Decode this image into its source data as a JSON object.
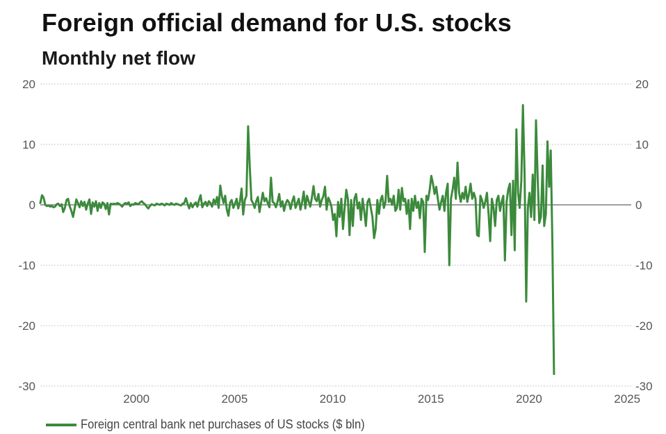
{
  "chart_data": {
    "type": "line",
    "title": "Foreign official demand for U.S. stocks",
    "subtitle": "Monthly net flow",
    "xlabel": "",
    "ylabel": "",
    "x_start": "1995-01",
    "x_frequency": "monthly",
    "xlim": [
      1995,
      2025.1
    ],
    "ylim": [
      -30,
      20
    ],
    "x_ticks": [
      {
        "value": 2000,
        "label": "2000"
      },
      {
        "value": 2005,
        "label": "2005"
      },
      {
        "value": 2010,
        "label": "2010"
      },
      {
        "value": 2015,
        "label": "2015"
      },
      {
        "value": 2020,
        "label": "2020"
      },
      {
        "value": 2025,
        "label": "2025"
      }
    ],
    "y_ticks": [
      {
        "value": 20,
        "label": "20"
      },
      {
        "value": 10,
        "label": "10"
      },
      {
        "value": 0,
        "label": "0"
      },
      {
        "value": -10,
        "label": "-10"
      },
      {
        "value": -20,
        "label": "-20"
      },
      {
        "value": -30,
        "label": "-30"
      }
    ],
    "grid": true,
    "dual_y_axis": true,
    "legend_position": "bottom-left",
    "series": [
      {
        "name": "Foreign central bank net purchases of US stocks ($ bln)",
        "color": "#3c8a3c",
        "values": [
          0.3,
          1.6,
          1.2,
          0.0,
          -0.2,
          -0.1,
          -0.3,
          -0.2,
          -0.4,
          -0.3,
          0.1,
          0.2,
          -0.2,
          0.1,
          -1.2,
          -0.5,
          0.8,
          1.0,
          -0.3,
          -1.0,
          -2.0,
          -0.6,
          0.9,
          0.3,
          -0.4,
          0.6,
          -0.2,
          0.5,
          -0.8,
          0.2,
          0.9,
          -1.5,
          0.4,
          -0.3,
          0.6,
          -1.0,
          0.3,
          -0.5,
          0.4,
          0.2,
          -0.7,
          0.3,
          -1.6,
          0.2,
          0.1,
          0.2,
          0.1,
          0.3,
          0.2,
          0.0,
          -0.3,
          0.1,
          0.3,
          0.2,
          0.4,
          -0.2,
          0.1,
          0.0,
          0.3,
          0.2,
          0.1,
          0.4,
          0.6,
          0.3,
          0.1,
          -0.3,
          -0.6,
          -0.2,
          0.1,
          0.0,
          -0.1,
          0.2,
          0.1,
          0.0,
          0.2,
          0.1,
          -0.1,
          0.2,
          0.1,
          0.0,
          0.3,
          0.1,
          0.0,
          0.2,
          0.1,
          0.0,
          -0.1,
          0.2,
          0.3,
          1.1,
          0.2,
          -0.6,
          0.3,
          -0.4,
          0.1,
          0.4,
          -0.3,
          0.8,
          1.6,
          -0.4,
          0.2,
          0.5,
          -0.2,
          0.6,
          0.3,
          -0.3,
          0.9,
          0.2,
          1.3,
          -0.5,
          3.2,
          1.4,
          0.3,
          1.5,
          -0.8,
          -1.8,
          0.4,
          0.8,
          -0.5,
          0.2,
          1.0,
          -0.6,
          0.5,
          2.7,
          -1.6,
          0.8,
          1.5,
          13.0,
          6.5,
          0.8,
          0.3,
          -0.5,
          0.6,
          1.3,
          -1.2,
          0.4,
          2.0,
          0.6,
          1.1,
          0.3,
          -0.4,
          4.5,
          0.5,
          0.3,
          -0.4,
          0.5,
          1.8,
          -0.3,
          0.6,
          -1.0,
          0.2,
          0.8,
          0.4,
          -0.7,
          0.6,
          1.4,
          -0.5,
          0.3,
          1.0,
          -0.8,
          0.4,
          2.2,
          -0.6,
          1.5,
          0.6,
          -0.3,
          1.2,
          3.1,
          1.0,
          0.6,
          1.8,
          -0.3,
          0.8,
          1.4,
          3.0,
          -0.8,
          1.2,
          0.6,
          -0.4,
          -2.5,
          -1.5,
          -5.2,
          0.5,
          -2.0,
          1.0,
          -4.0,
          -0.5,
          2.5,
          1.0,
          -5.0,
          0.8,
          -3.5,
          1.0,
          1.8,
          -0.6,
          0.4,
          -2.5,
          1.0,
          -1.0,
          -3.5,
          0.5,
          1.0,
          -0.5,
          -2.0,
          -5.5,
          -4.0,
          0.8,
          -1.5,
          0.8,
          1.5,
          -0.5,
          0.5,
          4.8,
          0.5,
          1.0,
          0.0,
          1.5,
          -1.0,
          -0.5,
          2.5,
          -0.8,
          2.8,
          0.6,
          1.0,
          -1.5,
          0.8,
          -4.0,
          1.0,
          -1.0,
          1.5,
          -0.5,
          0.5,
          -2.2,
          1.0,
          0.5,
          -7.8,
          1.5,
          0.8,
          2.5,
          4.8,
          3.5,
          1.8,
          3.0,
          1.0,
          -0.8,
          0.5,
          1.5,
          -1.0,
          2.0,
          3.5,
          -10.0,
          1.0,
          2.5,
          4.5,
          1.0,
          7.0,
          2.0,
          0.5,
          2.0,
          1.0,
          3.0,
          0.5,
          1.8,
          3.5,
          1.0,
          2.0,
          1.0,
          -5.0,
          -5.2,
          1.5,
          0.8,
          -0.5,
          0.5,
          2.0,
          -1.5,
          -6.0,
          1.0,
          -0.5,
          -3.5,
          0.8,
          1.5,
          -1.0,
          0.5,
          1.5,
          -9.2,
          0.5,
          2.5,
          3.5,
          -5.0,
          4.0,
          -7.5,
          12.5,
          2.0,
          -0.5,
          4.0,
          16.5,
          5.0,
          -16.0,
          -0.5,
          2.0,
          -2.0,
          5.0,
          -2.5,
          14.0,
          4.5,
          -3.0,
          -2.0,
          6.5,
          -3.5,
          -1.5,
          10.5,
          3.0,
          9.0,
          -6.5,
          -28.0
        ]
      }
    ]
  }
}
